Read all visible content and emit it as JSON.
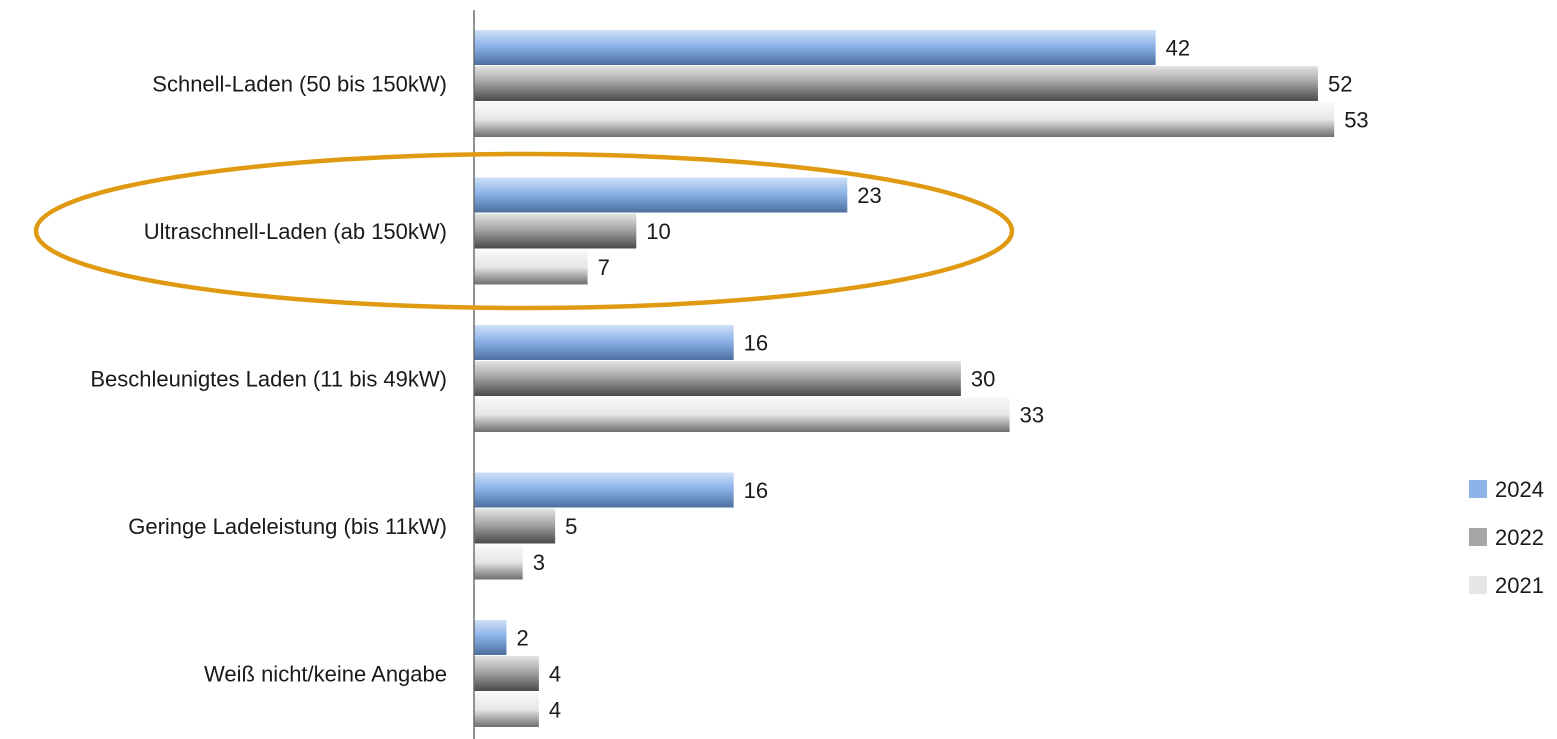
{
  "chart_data": {
    "type": "bar",
    "orientation": "horizontal",
    "categories": [
      "Schnell-Laden (50 bis 150kW)",
      "Ultraschnell-Laden (ab 150kW)",
      "Beschleunigtes Laden (11 bis 49kW)",
      "Geringe Ladeleistung (bis 11kW)",
      "Weiß nicht/keine Angabe"
    ],
    "series": [
      {
        "name": "2024",
        "values": [
          42,
          23,
          16,
          16,
          2
        ],
        "color": "#8db3e8"
      },
      {
        "name": "2022",
        "values": [
          52,
          10,
          30,
          5,
          4
        ],
        "color": "#a6a6a6"
      },
      {
        "name": "2021",
        "values": [
          53,
          7,
          33,
          3,
          4
        ],
        "color": "#e6e6e6"
      }
    ],
    "xlim": [
      0,
      66
    ],
    "grid": false,
    "legend_position": "right",
    "highlight": {
      "category": "Ultraschnell-Laden (ab 150kW)",
      "shape": "ellipse",
      "color": "#e09a12"
    }
  }
}
